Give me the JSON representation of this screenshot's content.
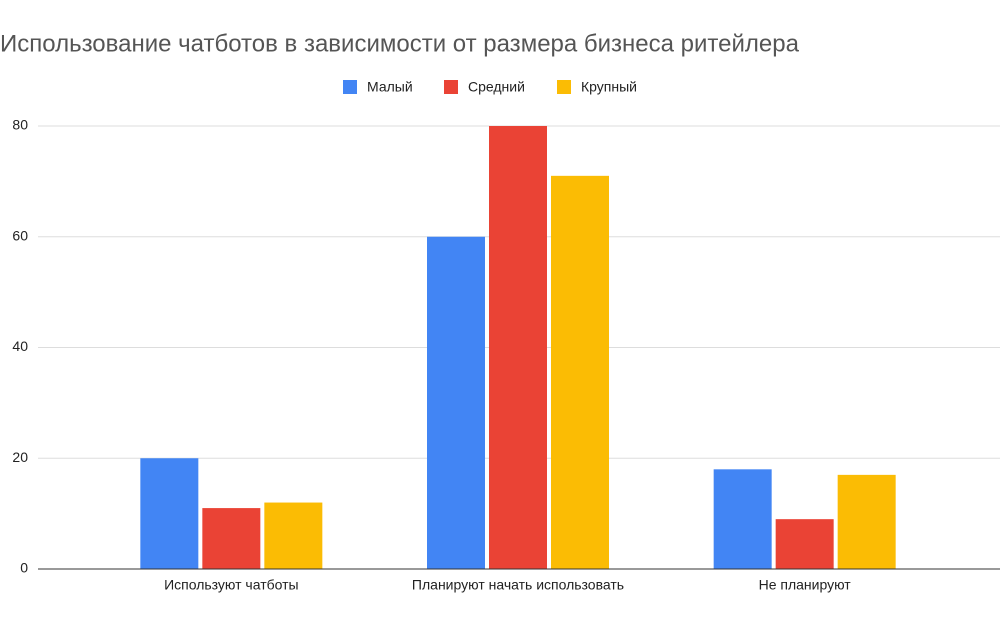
{
  "chart_data": {
    "type": "bar",
    "title": "Использование чатботов в зависимости от размера бизнеса ритейлера",
    "categories": [
      "Используют чатботы",
      "Планируют начать использовать",
      "Не планируют"
    ],
    "series": [
      {
        "name": "Малый",
        "color": "#4285f4",
        "values": [
          20,
          60,
          18
        ]
      },
      {
        "name": "Средний",
        "color": "#ea4335",
        "values": [
          11,
          80,
          9
        ]
      },
      {
        "name": "Крупный",
        "color": "#fbbc04",
        "values": [
          12,
          71,
          17
        ]
      }
    ],
    "ylim": [
      0,
      80
    ],
    "yticks": [
      0,
      20,
      40,
      60,
      80
    ],
    "grid": true,
    "legend": "top"
  }
}
